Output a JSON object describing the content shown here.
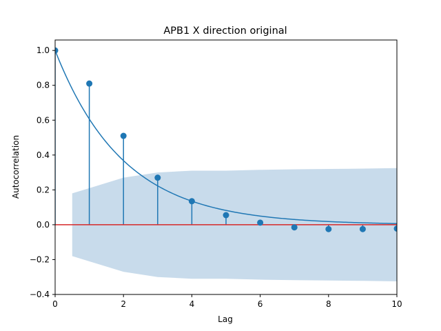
{
  "chart_data": {
    "type": "stem",
    "title": "APB1 X direction original",
    "xlabel": "Lag",
    "ylabel": "Autocorrelation",
    "xlim": [
      0,
      10
    ],
    "ylim": [
      -0.4,
      1.06
    ],
    "xticks": [
      0,
      2,
      4,
      6,
      8,
      10
    ],
    "yticks": [
      -0.4,
      -0.2,
      0.0,
      0.2,
      0.4,
      0.6,
      0.8,
      1.0
    ],
    "xtick_labels": [
      "0",
      "2",
      "4",
      "6",
      "8",
      "10"
    ],
    "ytick_labels": [
      "−0.4",
      "−0.2",
      "0.0",
      "0.2",
      "0.4",
      "0.6",
      "0.8",
      "1.0"
    ],
    "grid": false,
    "series": [
      {
        "name": "acf",
        "lags": [
          0,
          1,
          2,
          3,
          4,
          5,
          6,
          7,
          8,
          9,
          10
        ],
        "values": [
          1.0,
          0.81,
          0.51,
          0.27,
          0.135,
          0.055,
          0.012,
          -0.015,
          -0.025,
          -0.025,
          -0.022
        ],
        "color": "#1f77b4"
      },
      {
        "name": "exponential-fit",
        "function": "exp(-0.5 * lag)",
        "color": "#1f77b4"
      },
      {
        "name": "confidence-band",
        "lags": [
          0.5,
          1,
          2,
          3,
          4,
          5,
          6,
          7,
          8,
          9,
          10
        ],
        "upper": [
          0.18,
          0.21,
          0.27,
          0.3,
          0.31,
          0.31,
          0.315,
          0.318,
          0.32,
          0.322,
          0.325
        ],
        "color": "#c5d9ea"
      },
      {
        "name": "zero-line",
        "y": 0.0,
        "color": "#d62728"
      }
    ]
  }
}
